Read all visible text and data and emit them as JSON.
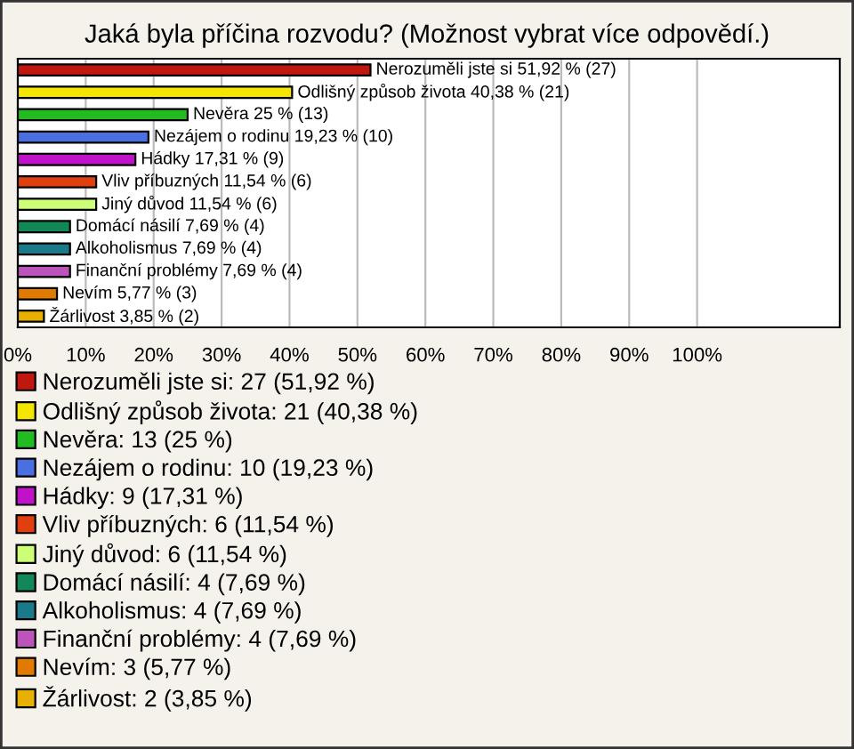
{
  "chart_data": {
    "type": "bar",
    "orientation": "horizontal",
    "title": "Jaká byla příčina rozvodu? (Možnost vybrat více odpovědí.)",
    "categories": [
      null,
      null,
      null,
      null,
      null,
      null,
      null,
      null,
      null,
      null,
      null,
      null
    ],
    "xlim": [
      0,
      121
    ],
    "xticks": [
      {
        "value": 0,
        "label": "0%"
      },
      {
        "value": 10,
        "label": "10%"
      },
      {
        "value": 20,
        "label": "20%"
      },
      {
        "value": 30,
        "label": "30%"
      },
      {
        "value": 40,
        "label": "40%"
      },
      {
        "value": 50,
        "label": "50%"
      },
      {
        "value": 60,
        "label": "60%"
      },
      {
        "value": 70,
        "label": "70%"
      },
      {
        "value": 80,
        "label": "80%"
      },
      {
        "value": 90,
        "label": "90%"
      },
      {
        "value": 100,
        "label": "100%"
      }
    ],
    "grid": "x",
    "legend": "bottom",
    "tick_labels": "x",
    "series": [
      {
        "name": "Nerozuměli jste si: 27 (51,92 %)",
        "color": "#c0170f",
        "values": [
          51.92,
          null,
          null,
          null,
          null,
          null,
          null,
          null,
          null,
          null,
          null,
          null
        ],
        "value_labels": [
          "Nerozuměli jste si 51,92 % (27)",
          null,
          null,
          null,
          null,
          null,
          null,
          null,
          null,
          null,
          null,
          null
        ]
      },
      {
        "name": "Odlišný způsob života: 21 (40,38 %)",
        "color": "#f5e600",
        "values": [
          null,
          40.38,
          null,
          null,
          null,
          null,
          null,
          null,
          null,
          null,
          null,
          null
        ],
        "value_labels": [
          null,
          "Odlišný způsob života 40,38 % (21)",
          null,
          null,
          null,
          null,
          null,
          null,
          null,
          null,
          null,
          null
        ]
      },
      {
        "name": "Nevěra: 13 (25 %)",
        "color": "#22bb22",
        "values": [
          null,
          null,
          25,
          null,
          null,
          null,
          null,
          null,
          null,
          null,
          null,
          null
        ],
        "value_labels": [
          null,
          null,
          "Nevěra 25 % (13)",
          null,
          null,
          null,
          null,
          null,
          null,
          null,
          null,
          null
        ]
      },
      {
        "name": "Nezájem o rodinu: 10 (19,23 %)",
        "color": "#4a6fe0",
        "values": [
          null,
          null,
          null,
          19.23,
          null,
          null,
          null,
          null,
          null,
          null,
          null,
          null
        ],
        "value_labels": [
          null,
          null,
          null,
          "Nezájem o rodinu 19,23 % (10)",
          null,
          null,
          null,
          null,
          null,
          null,
          null,
          null
        ]
      },
      {
        "name": "Hádky: 9 (17,31 %)",
        "color": "#c012c8",
        "values": [
          null,
          null,
          null,
          null,
          17.31,
          null,
          null,
          null,
          null,
          null,
          null,
          null
        ],
        "value_labels": [
          null,
          null,
          null,
          null,
          "Hádky 17,31 % (9)",
          null,
          null,
          null,
          null,
          null,
          null,
          null
        ]
      },
      {
        "name": "Vliv příbuzných: 6 (11,54 %)",
        "color": "#e04010",
        "values": [
          null,
          null,
          null,
          null,
          null,
          11.54,
          null,
          null,
          null,
          null,
          null,
          null
        ],
        "value_labels": [
          null,
          null,
          null,
          null,
          null,
          "Vliv příbuzných 11,54 % (6)",
          null,
          null,
          null,
          null,
          null,
          null
        ]
      },
      {
        "name": "Jiný důvod: 6 (11,54 %)",
        "color": "#ccff77",
        "values": [
          null,
          null,
          null,
          null,
          null,
          null,
          11.54,
          null,
          null,
          null,
          null,
          null
        ],
        "value_labels": [
          null,
          null,
          null,
          null,
          null,
          null,
          "Jiný důvod 11,54 % (6)",
          null,
          null,
          null,
          null,
          null
        ]
      },
      {
        "name": "Domácí násilí: 4 (7,69 %)",
        "color": "#118855",
        "values": [
          null,
          null,
          null,
          null,
          null,
          null,
          null,
          7.69,
          null,
          null,
          null,
          null
        ],
        "value_labels": [
          null,
          null,
          null,
          null,
          null,
          null,
          null,
          "Domácí násilí 7,69 % (4)",
          null,
          null,
          null,
          null
        ]
      },
      {
        "name": "Alkoholismus: 4 (7,69 %)",
        "color": "#1a7a8a",
        "values": [
          null,
          null,
          null,
          null,
          null,
          null,
          null,
          null,
          7.69,
          null,
          null,
          null
        ],
        "value_labels": [
          null,
          null,
          null,
          null,
          null,
          null,
          null,
          null,
          "Alkoholismus 7,69 % (4)",
          null,
          null,
          null
        ]
      },
      {
        "name": "Finanční problémy: 4 (7,69 %)",
        "color": "#bb55bb",
        "values": [
          null,
          null,
          null,
          null,
          null,
          null,
          null,
          null,
          null,
          7.69,
          null,
          null
        ],
        "value_labels": [
          null,
          null,
          null,
          null,
          null,
          null,
          null,
          null,
          null,
          "Finanční problémy 7,69 % (4)",
          null,
          null
        ]
      },
      {
        "name": "Nevím: 3 (5,77 %)",
        "color": "#e07a00",
        "values": [
          null,
          null,
          null,
          null,
          null,
          null,
          null,
          null,
          null,
          null,
          5.77,
          null
        ],
        "value_labels": [
          null,
          null,
          null,
          null,
          null,
          null,
          null,
          null,
          null,
          null,
          "Nevím 5,77 % (3)",
          null
        ]
      },
      {
        "name": "Žárlivost: 2 (3,85 %)",
        "color": "#e8b000",
        "values": [
          null,
          null,
          null,
          null,
          null,
          null,
          null,
          null,
          null,
          null,
          null,
          3.85
        ],
        "value_labels": [
          null,
          null,
          null,
          null,
          null,
          null,
          null,
          null,
          null,
          null,
          null,
          "Žárlivost 3,85 % (2)"
        ]
      }
    ]
  }
}
